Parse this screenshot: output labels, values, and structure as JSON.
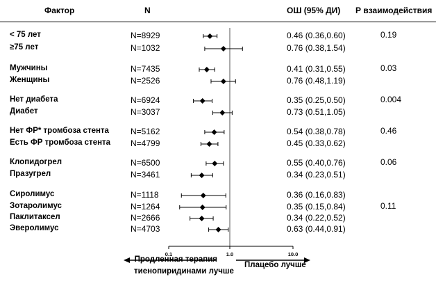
{
  "header": {
    "factor": "Фактор",
    "n": "N",
    "or": "ОШ (95% ДИ)",
    "p": "Р взаимодействия"
  },
  "chart_data": {
    "type": "forest",
    "x_scale": "log",
    "xlim": [
      0.1,
      10.0
    ],
    "ticks": [
      "0.1",
      "1.0",
      "10.0"
    ],
    "reference_line": 1.0,
    "rows": [
      {
        "label": "< 75 лет",
        "n": "N=8929",
        "or_text": "0.46 (0.36,0.60)",
        "or": 0.46,
        "lo": 0.36,
        "hi": 0.6
      },
      {
        "label": "≥75 лет",
        "n": "N=1032",
        "or_text": "0.76 (0.38,1.54)",
        "or": 0.76,
        "lo": 0.38,
        "hi": 1.54
      },
      {
        "label": "Мужчины",
        "n": "N=7435",
        "or_text": "0.41 (0.31,0.55)",
        "or": 0.41,
        "lo": 0.31,
        "hi": 0.55
      },
      {
        "label": "Женщины",
        "n": "N=2526",
        "or_text": "0.76 (0.48,1.19)",
        "or": 0.76,
        "lo": 0.48,
        "hi": 1.19
      },
      {
        "label": "Нет диабета",
        "n": "N=6924",
        "or_text": "0.35 (0.25,0.50)",
        "or": 0.35,
        "lo": 0.25,
        "hi": 0.5
      },
      {
        "label": "Диабет",
        "n": "N=3037",
        "or_text": "0.73 (0.51,1.05)",
        "or": 0.73,
        "lo": 0.51,
        "hi": 1.05
      },
      {
        "label": "Нет ФР* тромбоза стента",
        "n": "N=5162",
        "or_text": "0.54 (0.38,0.78)",
        "or": 0.54,
        "lo": 0.38,
        "hi": 0.78
      },
      {
        "label": "Есть ФР тромбоза стента",
        "n": "N=4799",
        "or_text": "0.45 (0.33,0.62)",
        "or": 0.45,
        "lo": 0.33,
        "hi": 0.62
      },
      {
        "label": "Клопидогрел",
        "n": "N=6500",
        "or_text": "0.55 (0.40,0.76)",
        "or": 0.55,
        "lo": 0.4,
        "hi": 0.76
      },
      {
        "label": "Празугрел",
        "n": "N=3461",
        "or_text": "0.34 (0.23,0.51)",
        "or": 0.34,
        "lo": 0.23,
        "hi": 0.51
      },
      {
        "label": "Сиролимус",
        "n": "N=1118",
        "or_text": "0.36 (0.16,0.83)",
        "or": 0.36,
        "lo": 0.16,
        "hi": 0.83
      },
      {
        "label": "Зотаролимус",
        "n": "N=1264",
        "or_text": "0.35 (0.15,0.84)",
        "or": 0.35,
        "lo": 0.15,
        "hi": 0.84
      },
      {
        "label": "Паклитаксел",
        "n": "N=2666",
        "or_text": "0.34 (0.22,0.52)",
        "or": 0.34,
        "lo": 0.22,
        "hi": 0.52
      },
      {
        "label": "Эверолимус",
        "n": "N=4703",
        "or_text": "0.63 (0.44,0.91)",
        "or": 0.63,
        "lo": 0.44,
        "hi": 0.91
      }
    ],
    "p_values": [
      "0.19",
      "0.03",
      "0.004",
      "0.46",
      "0.06",
      "0.11"
    ]
  },
  "footer": {
    "left_line1": "Продленная терапия",
    "left_line2": "тиенопиридинами лучше",
    "right": "Плацебо лучше"
  }
}
